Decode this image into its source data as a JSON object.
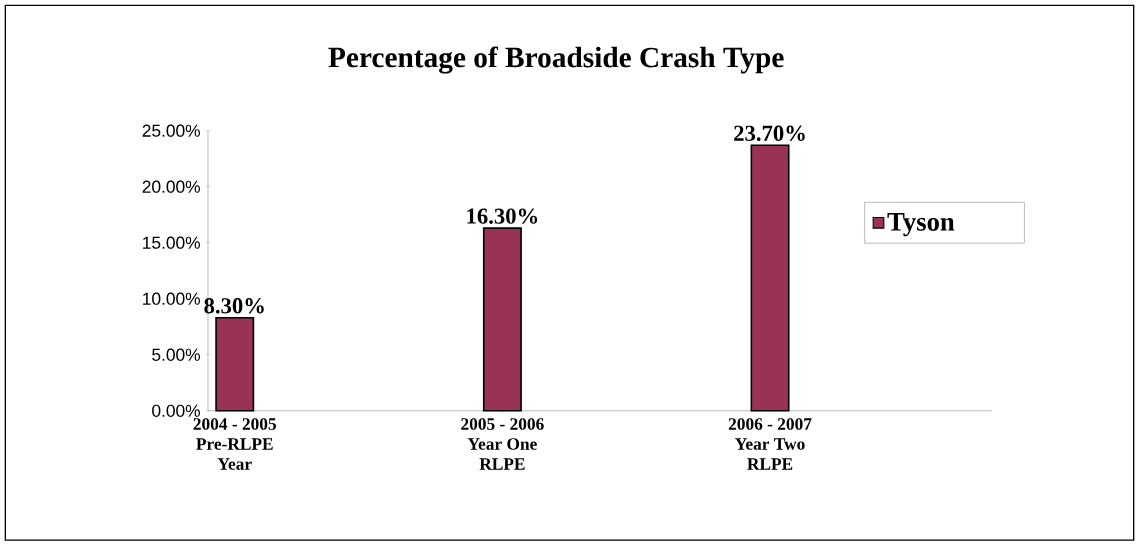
{
  "chart_data": {
    "type": "bar",
    "title": "Percentage of Broadside Crash Type",
    "categories": [
      "2004 - 2005 Pre-RLPE Year",
      "2005 - 2006 Year One RLPE",
      "2006 - 2007 Year Two RLPE"
    ],
    "series": [
      {
        "name": "Tyson",
        "color": "#993355",
        "values": [
          8.3,
          16.3,
          23.7
        ],
        "value_labels": [
          "8.30%",
          "16.30%",
          "23.70%"
        ]
      }
    ],
    "ylim": [
      0,
      25
    ],
    "yticks": [
      {
        "value": 0,
        "label": "0.00%"
      },
      {
        "value": 5,
        "label": "5.00%"
      },
      {
        "value": 10,
        "label": "10.00%"
      },
      {
        "value": 15,
        "label": "15.00%"
      },
      {
        "value": 20,
        "label": "20.00%"
      },
      {
        "value": 25,
        "label": "25.00%"
      }
    ],
    "grid": false,
    "legend": "right"
  }
}
